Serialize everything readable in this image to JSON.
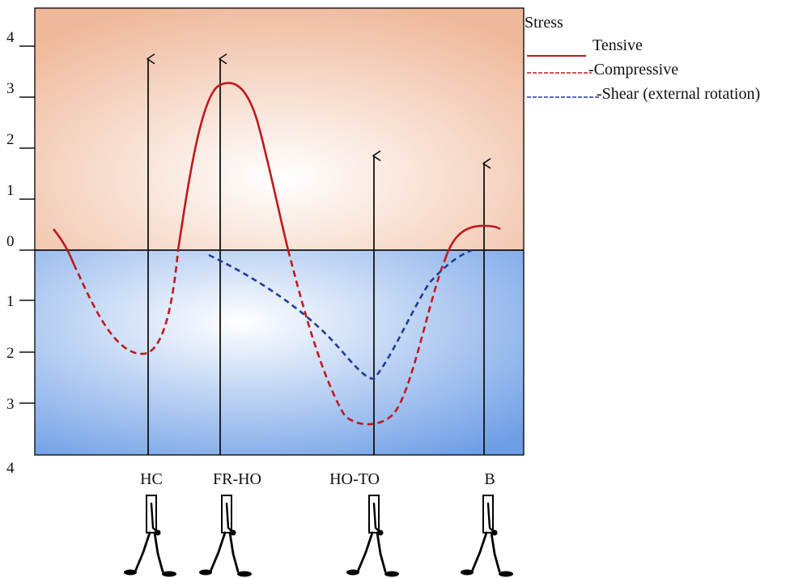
{
  "colors": {
    "tensile": "#c0181e",
    "compressive": "#c0181e",
    "shear": "#1f3a9a",
    "upper_bg_center": "#ffffff",
    "upper_bg_edge": "#efb89a",
    "lower_bg_center": "#ffffff",
    "lower_bg_edge": "#6e9ee6",
    "axis": "#111111"
  },
  "legend": {
    "title": "Stress",
    "items": [
      {
        "key": "tensile",
        "label": "Tensive",
        "style": "solid"
      },
      {
        "key": "compressive",
        "label": "-Compressive",
        "style": "dashed"
      },
      {
        "key": "shear",
        "label": "-Shear (external rotation)",
        "style": "dashed"
      }
    ]
  },
  "axis": {
    "tick_labels_upper": [
      "4",
      "3",
      "2",
      "1",
      "0"
    ],
    "tick_labels_lower": [
      "1",
      "2",
      "3",
      "4"
    ]
  },
  "phases": [
    {
      "label": "HC",
      "arrow_top_value": 3.75
    },
    {
      "label": "FR-HO",
      "arrow_top_value": 3.75
    },
    {
      "label": "HO-TO",
      "arrow_top_value": 1.85
    },
    {
      "label": "B",
      "arrow_top_value": 1.7
    }
  ],
  "figures": [
    {
      "icon": "walking-figure-icon"
    },
    {
      "icon": "walking-figure-icon"
    },
    {
      "icon": "walking-figure-icon"
    },
    {
      "icon": "walking-figure-icon"
    }
  ]
}
